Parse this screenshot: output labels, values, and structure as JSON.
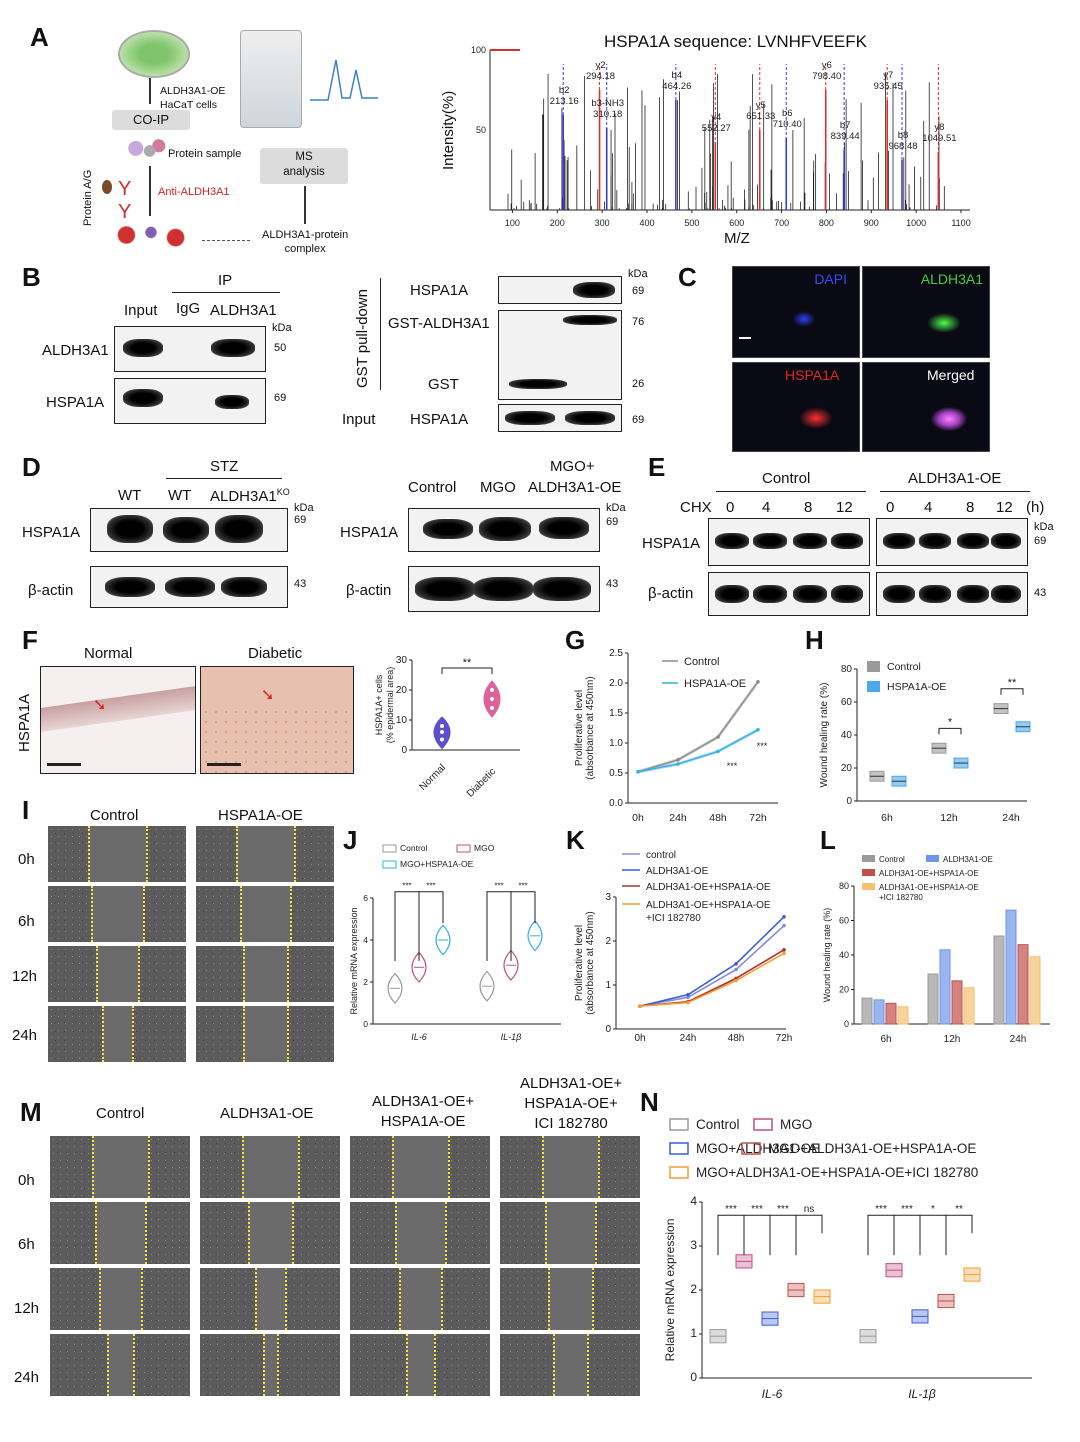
{
  "panels": {
    "A": "A",
    "B": "B",
    "C": "C",
    "D": "D",
    "E": "E",
    "F": "F",
    "G": "G",
    "H": "H",
    "I": "I",
    "J": "J",
    "K": "K",
    "L": "L",
    "M": "M",
    "N": "N"
  },
  "a": {
    "cells": "ALDH3A1-OE\nHaCaT cells",
    "coip": "CO-IP",
    "protein_sample": "Protein sample",
    "anti": "Anti-ALDH3A1",
    "protein_ag": "Protein A/G",
    "ms": "MS\nanalysis",
    "complex": "ALDH3A1-protein\ncomplex",
    "spec_title": "HSPA1A sequence: LVNHFVEEFK",
    "ylabel": "Intensity(%)",
    "xlabel": "M/Z",
    "yticks": [
      "100",
      "50"
    ],
    "xticks": [
      "100",
      "200",
      "300",
      "400",
      "500",
      "600",
      "700",
      "800",
      "900",
      "1000",
      "1100"
    ],
    "peaks": [
      {
        "mz": 213.16,
        "label": "b2\n213.16",
        "color": "#3b3bdc"
      },
      {
        "mz": 294.18,
        "label": "y2\n294.18",
        "color": "#d93030"
      },
      {
        "mz": 310.18,
        "label": "b3-NH3\n310.18",
        "color": "#3b3bdc"
      },
      {
        "mz": 464.26,
        "label": "b4\n464.26",
        "color": "#3b3bdc"
      },
      {
        "mz": 552.27,
        "label": "y4\n552.27",
        "color": "#d93030"
      },
      {
        "mz": 651.33,
        "label": "y5\n651.33",
        "color": "#d93030"
      },
      {
        "mz": 710.4,
        "label": "b6\n710.40",
        "color": "#3b3bdc"
      },
      {
        "mz": 798.4,
        "label": "y6\n798.40",
        "color": "#d93030"
      },
      {
        "mz": 839.44,
        "label": "b7\n839.44",
        "color": "#3b3bdc"
      },
      {
        "mz": 935.45,
        "label": "y7\n935.45",
        "color": "#d93030"
      },
      {
        "mz": 968.48,
        "label": "b8\n968.48",
        "color": "#3b3bdc"
      },
      {
        "mz": 1049.51,
        "label": "y8\n1049.51",
        "color": "#d93030"
      }
    ]
  },
  "b": {
    "ip": "IP",
    "input": "Input",
    "igg": "IgG",
    "aldh": "ALDH3A1",
    "kda": "kDa",
    "row1": "ALDH3A1",
    "row2": "HSPA1A",
    "mw1": "50",
    "mw2": "69",
    "gst_side": "GST pull-down",
    "gst_r1": "HSPA1A",
    "gst_r2": "GST-ALDH3A1",
    "gst_r3": "GST",
    "gst_input": "Input",
    "gst_input_r": "HSPA1A",
    "gmw": [
      "69",
      "76",
      "26",
      "69"
    ]
  },
  "c": {
    "dapi": "DAPI",
    "aldh": "ALDH3A1",
    "hspa": "HSPA1A",
    "merged": "Merged"
  },
  "d": {
    "stz": "STZ",
    "wt1": "WT",
    "wt2": "WT",
    "ko": "ALDH3A1",
    "ko_sup": "KO",
    "kda": "kDa",
    "r1": "HSPA1A",
    "r2": "β-actin",
    "mw1": "69",
    "mw2": "43",
    "ctrl": "Control",
    "mgo": "MGO",
    "mgo2": "MGO+",
    "aldhoe": "ALDH3A1-OE"
  },
  "e": {
    "control": "Control",
    "aldhoe": "ALDH3A1-OE",
    "chx": "CHX",
    "times": [
      "0",
      "4",
      "8",
      "12"
    ],
    "h": "(h)",
    "r1": "HSPA1A",
    "r2": "β-actin",
    "kda": "kDa",
    "mw1": "69",
    "mw2": "43"
  },
  "f": {
    "normal": "Normal",
    "diabetic": "Diabetic",
    "side": "HSPA1A",
    "chart_data": {
      "type": "violin",
      "ylabel": "HSPA1A+ cells\n(% epidermal area)",
      "categories": [
        "Normal",
        "Diabetic"
      ],
      "ylim": [
        0,
        30
      ],
      "yticks": [
        0,
        10,
        20,
        30
      ],
      "values": [
        {
          "name": "Normal",
          "median": 6,
          "points": [
            3.5,
            6,
            8
          ]
        },
        {
          "name": "Diabetic",
          "median": 17,
          "points": [
            14,
            17,
            20
          ]
        }
      ],
      "sig": "**",
      "colors": [
        "#5a4fcf",
        "#e0609a"
      ]
    }
  },
  "g": {
    "chart_data": {
      "type": "line",
      "ylabel": "Proliferative level\n(absorbance at 450nm)",
      "x": [
        "0h",
        "24h",
        "48h",
        "72h"
      ],
      "ylim": [
        0,
        2.5
      ],
      "yticks": [
        0.0,
        0.5,
        1.0,
        1.5,
        2.0,
        2.5
      ],
      "series": [
        {
          "name": "Control",
          "values": [
            0.52,
            0.72,
            1.1,
            2.02
          ],
          "color": "#8c8c8c"
        },
        {
          "name": "HSPA1A-OE",
          "values": [
            0.52,
            0.65,
            0.86,
            1.22
          ],
          "color": "#32b0e6"
        }
      ],
      "annot": [
        "***",
        "***"
      ]
    }
  },
  "h": {
    "chart_data": {
      "type": "box",
      "ylabel": "Wound healing rate (%)",
      "categories": [
        "6h",
        "12h",
        "24h"
      ],
      "ylim": [
        0,
        80
      ],
      "yticks": [
        0,
        20,
        40,
        60,
        80
      ],
      "series": [
        {
          "name": "Control",
          "values": [
            15,
            32,
            56
          ],
          "color": "#9a9a9a"
        },
        {
          "name": "HSPA1A-OE",
          "values": [
            12,
            23,
            45
          ],
          "color": "#4aa8ec"
        }
      ],
      "sig": [
        "*",
        "**"
      ]
    }
  },
  "i": {
    "control": "Control",
    "hspa": "HSPA1A-OE",
    "times": [
      "0h",
      "6h",
      "12h",
      "24h"
    ]
  },
  "j": {
    "chart_data": {
      "type": "violin",
      "ylabel": "Relative mRNA expression",
      "categories": [
        "IL-6",
        "IL-1β"
      ],
      "ylim": [
        0,
        6
      ],
      "yticks": [
        0,
        2,
        4,
        6
      ],
      "series": [
        {
          "name": "Control",
          "values": [
            1.7,
            1.8
          ],
          "color": "#9a9a9a"
        },
        {
          "name": "MGO",
          "values": [
            2.7,
            2.8
          ],
          "color": "#c05080"
        },
        {
          "name": "MGO+HSPA1A-OE",
          "values": [
            4.0,
            4.2
          ],
          "color": "#32b0e6"
        }
      ],
      "sig": "***"
    }
  },
  "k": {
    "chart_data": {
      "type": "line",
      "ylabel": "Proliferative level\n(absorbance at 450nm)",
      "x": [
        "0h",
        "24h",
        "48h",
        "72h"
      ],
      "ylim": [
        0,
        3
      ],
      "yticks": [
        0,
        1,
        2,
        3
      ],
      "series": [
        {
          "name": "control",
          "values": [
            0.52,
            0.72,
            1.35,
            2.35
          ],
          "color": "#8a8ad8"
        },
        {
          "name": "ALDH3A1-OE",
          "values": [
            0.52,
            0.78,
            1.48,
            2.55
          ],
          "color": "#3a5ed8"
        },
        {
          "name": "ALDH3A1-OE+HSPA1A-OE",
          "values": [
            0.52,
            0.62,
            1.15,
            1.8
          ],
          "color": "#b03030"
        },
        {
          "name": "ALDH3A1-OE+HSPA1A-OE\n+ICI 182780",
          "values": [
            0.52,
            0.6,
            1.1,
            1.72
          ],
          "color": "#f0a030"
        }
      ]
    }
  },
  "l": {
    "chart_data": {
      "type": "bar",
      "ylabel": "Wound healing rate (%)",
      "categories": [
        "6h",
        "12h",
        "24h"
      ],
      "ylim": [
        0,
        80
      ],
      "yticks": [
        0,
        20,
        40,
        60,
        80
      ],
      "series": [
        {
          "name": "Control",
          "values": [
            15,
            29,
            51
          ],
          "color": "#9a9a9a"
        },
        {
          "name": "ALDH3A1-OE",
          "values": [
            14,
            43,
            66
          ],
          "color": "#6f95ea"
        },
        {
          "name": "ALDH3A1-OE+HSPA1A-OE",
          "values": [
            12,
            25,
            46
          ],
          "color": "#c0504a"
        },
        {
          "name": "ALDH3A1-OE+HSPA1A-OE\n+ICI 182780",
          "values": [
            10,
            21,
            39
          ],
          "color": "#f5c070"
        }
      ]
    }
  },
  "m": {
    "cols": [
      "Control",
      "ALDH3A1-OE",
      "ALDH3A1-OE+\nHSPA1A-OE",
      "ALDH3A1-OE+\nHSPA1A-OE+\nICI 182780"
    ],
    "times": [
      "0h",
      "6h",
      "12h",
      "24h"
    ]
  },
  "n": {
    "chart_data": {
      "type": "box",
      "ylabel": "Relative mRNA expression",
      "categories": [
        "IL-6",
        "IL-1β"
      ],
      "ylim": [
        0,
        4
      ],
      "yticks": [
        0,
        1,
        2,
        3,
        4
      ],
      "series": [
        {
          "name": "Control",
          "values": [
            0.95,
            0.95
          ],
          "color": "#9a9a9a"
        },
        {
          "name": "MGO",
          "values": [
            2.65,
            2.45
          ],
          "color": "#c05080"
        },
        {
          "name": "MGO+ALDH3A1-OE",
          "values": [
            1.35,
            1.4
          ],
          "color": "#3a5ed8"
        },
        {
          "name": "MGO+ALDH3A1-OE+HSPA1A-OE",
          "values": [
            2.0,
            1.75
          ],
          "color": "#c0504a"
        },
        {
          "name": "MGO+ALDH3A1-OE+HSPA1A-OE+ICI 182780",
          "values": [
            1.85,
            2.35
          ],
          "color": "#f0a030"
        }
      ],
      "sig": [
        [
          "***",
          "***",
          "***",
          "ns"
        ],
        [
          "***",
          "***",
          "*",
          "**"
        ]
      ]
    }
  }
}
